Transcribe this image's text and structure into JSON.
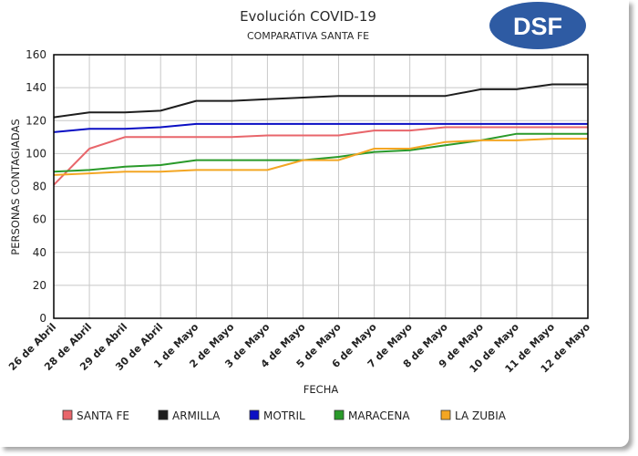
{
  "logo": {
    "text": "DSF",
    "color": "#2e5ba3"
  },
  "chart_data": {
    "type": "line",
    "title": "Evolución COVID-19",
    "subtitle": "COMPARATIVA SANTA FE",
    "xlabel": "FECHA",
    "ylabel": "PERSONAS CONTAGIADAS",
    "ylim": [
      0,
      160
    ],
    "yticks": [
      0,
      20,
      40,
      60,
      80,
      100,
      120,
      140,
      160
    ],
    "grid": true,
    "legend_position": "bottom",
    "categories": [
      "26 de Abril",
      "28 de Abril",
      "29 de Abril",
      "30 de Abril",
      "1 de Mayo",
      "2 de Mayo",
      "3 de Mayo",
      "4 de Mayo",
      "5 de Mayo",
      "6 de Mayo",
      "7 de Mayo",
      "8 de Mayo",
      "9 de Mayo",
      "10 de Mayo",
      "11 de Mayo",
      "12 de Mayo"
    ],
    "series": [
      {
        "name": "SANTA FE",
        "color": "#e8666b",
        "values": [
          81,
          103,
          110,
          110,
          110,
          110,
          111,
          111,
          111,
          114,
          114,
          116,
          116,
          116,
          116,
          116
        ]
      },
      {
        "name": "ARMILLA",
        "color": "#1e1e1e",
        "values": [
          122,
          125,
          125,
          126,
          132,
          132,
          133,
          134,
          135,
          135,
          135,
          135,
          139,
          139,
          142,
          142
        ]
      },
      {
        "name": "MOTRIL",
        "color": "#0b0fc4",
        "values": [
          113,
          115,
          115,
          116,
          118,
          118,
          118,
          118,
          118,
          118,
          118,
          118,
          118,
          118,
          118,
          118
        ]
      },
      {
        "name": "MARACENA",
        "color": "#2a9a2a",
        "values": [
          89,
          90,
          92,
          93,
          96,
          96,
          96,
          96,
          98,
          101,
          102,
          105,
          108,
          112,
          112,
          112
        ]
      },
      {
        "name": "LA ZUBIA",
        "color": "#f3a623",
        "values": [
          87,
          88,
          89,
          89,
          90,
          90,
          90,
          96,
          96,
          103,
          103,
          107,
          108,
          108,
          109,
          109
        ]
      }
    ]
  }
}
